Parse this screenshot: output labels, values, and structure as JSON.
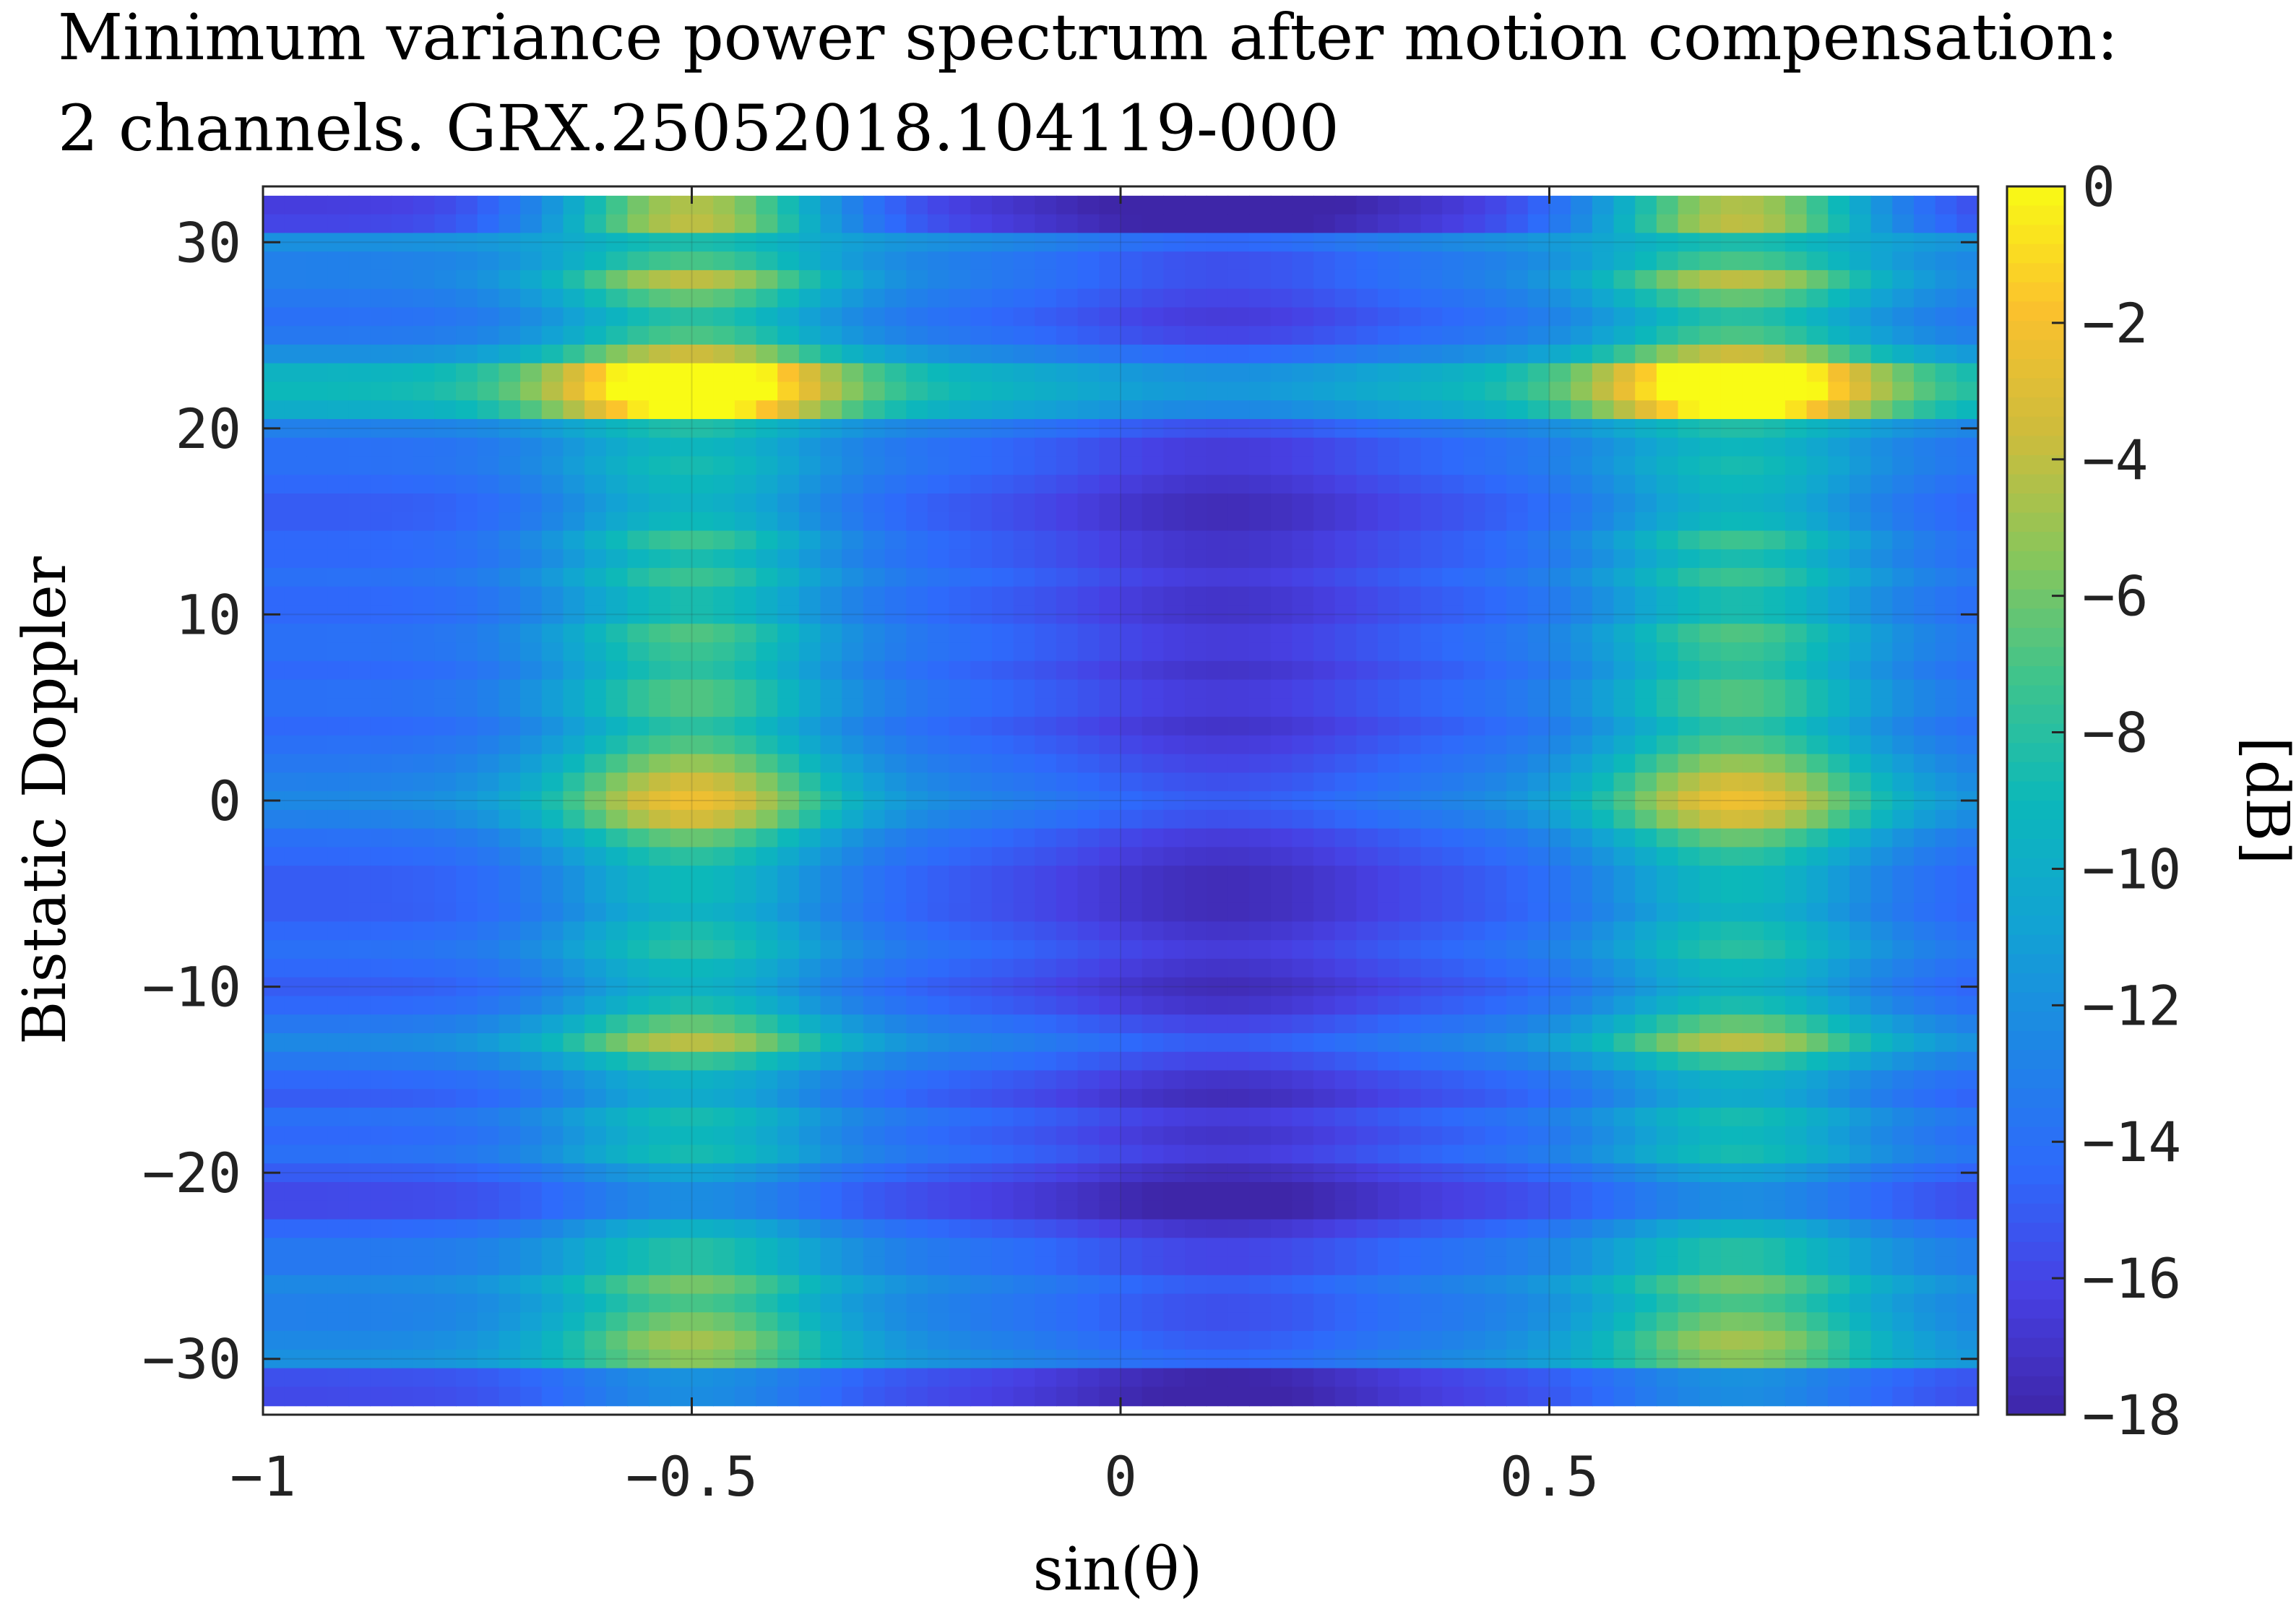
{
  "chart_data": {
    "type": "heatmap",
    "title_line1": "Minimum variance power spectrum after motion compensation:",
    "title_line2": "2 channels.  GRX.25052018.104119-000",
    "xlabel": "sin(θ)",
    "ylabel": "Bistatic Doppler",
    "colorbar_label": "[dB]",
    "colormap": "parula",
    "xlim": [
      -1,
      1
    ],
    "ylim": [
      -33,
      33
    ],
    "clim": [
      -18,
      0
    ],
    "grid": true,
    "x_ticks": [
      -1,
      -0.5,
      0,
      0.5
    ],
    "x_tick_labels": [
      "−1",
      "−0.5",
      "0",
      "0.5"
    ],
    "y_ticks": [
      -30,
      -20,
      -10,
      0,
      10,
      20,
      30
    ],
    "y_tick_labels": [
      "−30",
      "−20",
      "−10",
      "0",
      "10",
      "20",
      "30"
    ],
    "colorbar_ticks": [
      0,
      -2,
      -4,
      -6,
      -8,
      -10,
      -12,
      -14,
      -16,
      -18
    ],
    "colorbar_tick_labels": [
      "0",
      "−2",
      "−4",
      "−6",
      "−8",
      "−10",
      "−12",
      "−14",
      "−16",
      "−18"
    ],
    "x_step": 0.025,
    "doppler_rows": [
      {
        "y": 32,
        "base": -16.4,
        "peak_gain": 1.0
      },
      {
        "y": 31,
        "base": -16.0,
        "peak_gain": 1.0
      },
      {
        "y": 30,
        "base": -12.0,
        "peak_gain": 0.3
      },
      {
        "y": 29,
        "base": -13.0,
        "peak_gain": 0.5
      },
      {
        "y": 28,
        "base": -13.0,
        "peak_gain": 0.75
      },
      {
        "y": 27,
        "base": -13.5,
        "peak_gain": 0.6
      },
      {
        "y": 26,
        "base": -14.0,
        "peak_gain": 0.5
      },
      {
        "y": 25,
        "base": -13.5,
        "peak_gain": 0.55
      },
      {
        "y": 24,
        "base": -12.0,
        "peak_gain": 0.7
      },
      {
        "y": 23,
        "base": -9.5,
        "peak_gain": 1.0
      },
      {
        "y": 22,
        "base": -9.0,
        "peak_gain": 1.0
      },
      {
        "y": 21,
        "base": -10.0,
        "peak_gain": 0.9
      },
      {
        "y": 20,
        "base": -13.0,
        "peak_gain": 0.4
      },
      {
        "y": 19,
        "base": -14.0,
        "peak_gain": 0.4
      },
      {
        "y": 18,
        "base": -14.0,
        "peak_gain": 0.45
      },
      {
        "y": 17,
        "base": -14.5,
        "peak_gain": 0.45
      },
      {
        "y": 16,
        "base": -15.0,
        "peak_gain": 0.45
      },
      {
        "y": 15,
        "base": -15.0,
        "peak_gain": 0.5
      },
      {
        "y": 14,
        "base": -14.5,
        "peak_gain": 0.6
      },
      {
        "y": 13,
        "base": -14.5,
        "peak_gain": 0.5
      },
      {
        "y": 12,
        "base": -14.0,
        "peak_gain": 0.55
      },
      {
        "y": 11,
        "base": -14.5,
        "peak_gain": 0.5
      },
      {
        "y": 10,
        "base": -14.5,
        "peak_gain": 0.5
      },
      {
        "y": 9,
        "base": -14.0,
        "peak_gain": 0.6
      },
      {
        "y": 8,
        "base": -14.0,
        "peak_gain": 0.55
      },
      {
        "y": 7,
        "base": -14.5,
        "peak_gain": 0.55
      },
      {
        "y": 6,
        "base": -14.0,
        "peak_gain": 0.6
      },
      {
        "y": 5,
        "base": -14.0,
        "peak_gain": 0.6
      },
      {
        "y": 4,
        "base": -14.5,
        "peak_gain": 0.55
      },
      {
        "y": 3,
        "base": -14.0,
        "peak_gain": 0.6
      },
      {
        "y": 2,
        "base": -13.5,
        "peak_gain": 0.7
      },
      {
        "y": 1,
        "base": -13.0,
        "peak_gain": 0.8
      },
      {
        "y": 0,
        "base": -12.5,
        "peak_gain": 0.85
      },
      {
        "y": -1,
        "base": -13.0,
        "peak_gain": 0.8
      },
      {
        "y": -2,
        "base": -14.0,
        "peak_gain": 0.65
      },
      {
        "y": -3,
        "base": -14.5,
        "peak_gain": 0.55
      },
      {
        "y": -4,
        "base": -15.0,
        "peak_gain": 0.5
      },
      {
        "y": -5,
        "base": -15.0,
        "peak_gain": 0.5
      },
      {
        "y": -6,
        "base": -15.0,
        "peak_gain": 0.45
      },
      {
        "y": -7,
        "base": -14.5,
        "peak_gain": 0.5
      },
      {
        "y": -8,
        "base": -14.0,
        "peak_gain": 0.5
      },
      {
        "y": -9,
        "base": -14.5,
        "peak_gain": 0.45
      },
      {
        "y": -10,
        "base": -15.0,
        "peak_gain": 0.45
      },
      {
        "y": -11,
        "base": -14.5,
        "peak_gain": 0.5
      },
      {
        "y": -12,
        "base": -13.5,
        "peak_gain": 0.6
      },
      {
        "y": -13,
        "base": -12.5,
        "peak_gain": 0.7
      },
      {
        "y": -14,
        "base": -13.5,
        "peak_gain": 0.5
      },
      {
        "y": -15,
        "base": -14.5,
        "peak_gain": 0.4
      },
      {
        "y": -16,
        "base": -15.0,
        "peak_gain": 0.4
      },
      {
        "y": -17,
        "base": -14.0,
        "peak_gain": 0.45
      },
      {
        "y": -18,
        "base": -14.5,
        "peak_gain": 0.45
      },
      {
        "y": -19,
        "base": -14.0,
        "peak_gain": 0.45
      },
      {
        "y": -20,
        "base": -15.0,
        "peak_gain": 0.35
      },
      {
        "y": -21,
        "base": -15.8,
        "peak_gain": 0.3
      },
      {
        "y": -22,
        "base": -15.8,
        "peak_gain": 0.3
      },
      {
        "y": -23,
        "base": -14.5,
        "peak_gain": 0.4
      },
      {
        "y": -24,
        "base": -13.5,
        "peak_gain": 0.45
      },
      {
        "y": -25,
        "base": -13.5,
        "peak_gain": 0.45
      },
      {
        "y": -26,
        "base": -12.5,
        "peak_gain": 0.55
      },
      {
        "y": -27,
        "base": -13.0,
        "peak_gain": 0.5
      },
      {
        "y": -28,
        "base": -13.0,
        "peak_gain": 0.6
      },
      {
        "y": -29,
        "base": -12.5,
        "peak_gain": 0.65
      },
      {
        "y": -30,
        "base": -12.0,
        "peak_gain": 0.55
      },
      {
        "y": -31,
        "base": -15.5,
        "peak_gain": 0.3
      },
      {
        "y": -32,
        "base": -15.8,
        "peak_gain": 0.3
      }
    ],
    "angular_profile": {
      "peaks": [
        {
          "x": -0.5,
          "width": 0.12,
          "gain_db": 12.0
        },
        {
          "x": 0.72,
          "width": 0.12,
          "gain_db": 12.0
        }
      ],
      "null_x": 0.12,
      "null_depth_db": 2.5
    }
  }
}
